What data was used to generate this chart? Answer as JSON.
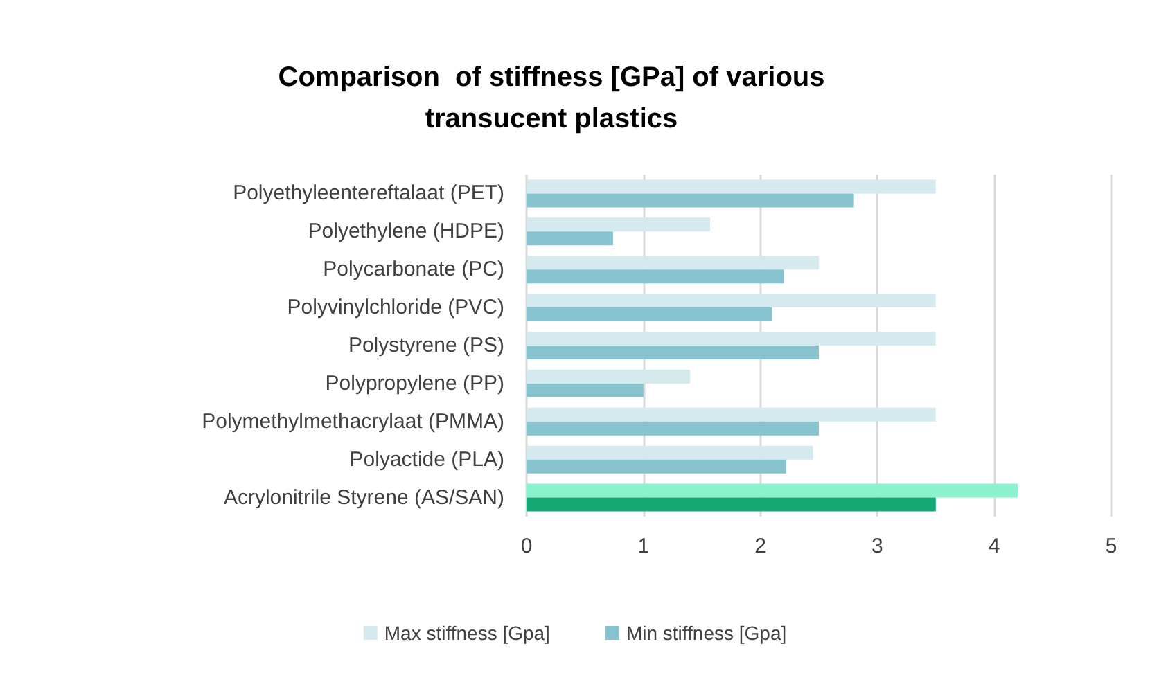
{
  "chart_data": {
    "type": "bar",
    "orientation": "horizontal",
    "title": "Comparison  of stiffness [GPa] of various\ntransucent plastics",
    "categories": [
      "Polyethyleentereftalaat (PET)",
      "Polyethylene (HDPE)",
      "Polycarbonate (PC)",
      "Polyvinylchloride (PVC)",
      "Polystyrene (PS)",
      "Polypropylene (PP)",
      "Polymethylmethacrylaat (PMMA)",
      "Polyactide (PLA)",
      "Acrylonitrile Styrene (AS/SAN)"
    ],
    "series": [
      {
        "name": "Max stiffness [Gpa]",
        "color": "#d4eaee",
        "colors": [
          "#d4eaee",
          "#d4eaee",
          "#d4eaee",
          "#d4eaee",
          "#d4eaee",
          "#d4eaee",
          "#d4eaee",
          "#d4eaee",
          "#8af2cc"
        ],
        "values": [
          3.5,
          1.57,
          2.5,
          3.5,
          3.5,
          1.4,
          3.5,
          2.45,
          4.2
        ]
      },
      {
        "name": "Min stiffness [Gpa]",
        "color": "#86c3cf",
        "colors": [
          "#86c3cf",
          "#86c3cf",
          "#86c3cf",
          "#86c3cf",
          "#86c3cf",
          "#86c3cf",
          "#86c3cf",
          "#86c3cf",
          "#14a874"
        ],
        "values": [
          2.8,
          0.74,
          2.2,
          2.1,
          2.5,
          1.0,
          2.5,
          2.22,
          3.5
        ]
      }
    ],
    "xlim": [
      0,
      5
    ],
    "xticks": [
      0,
      1,
      2,
      3,
      4,
      5
    ],
    "grid": "x",
    "legend": "bottom"
  }
}
